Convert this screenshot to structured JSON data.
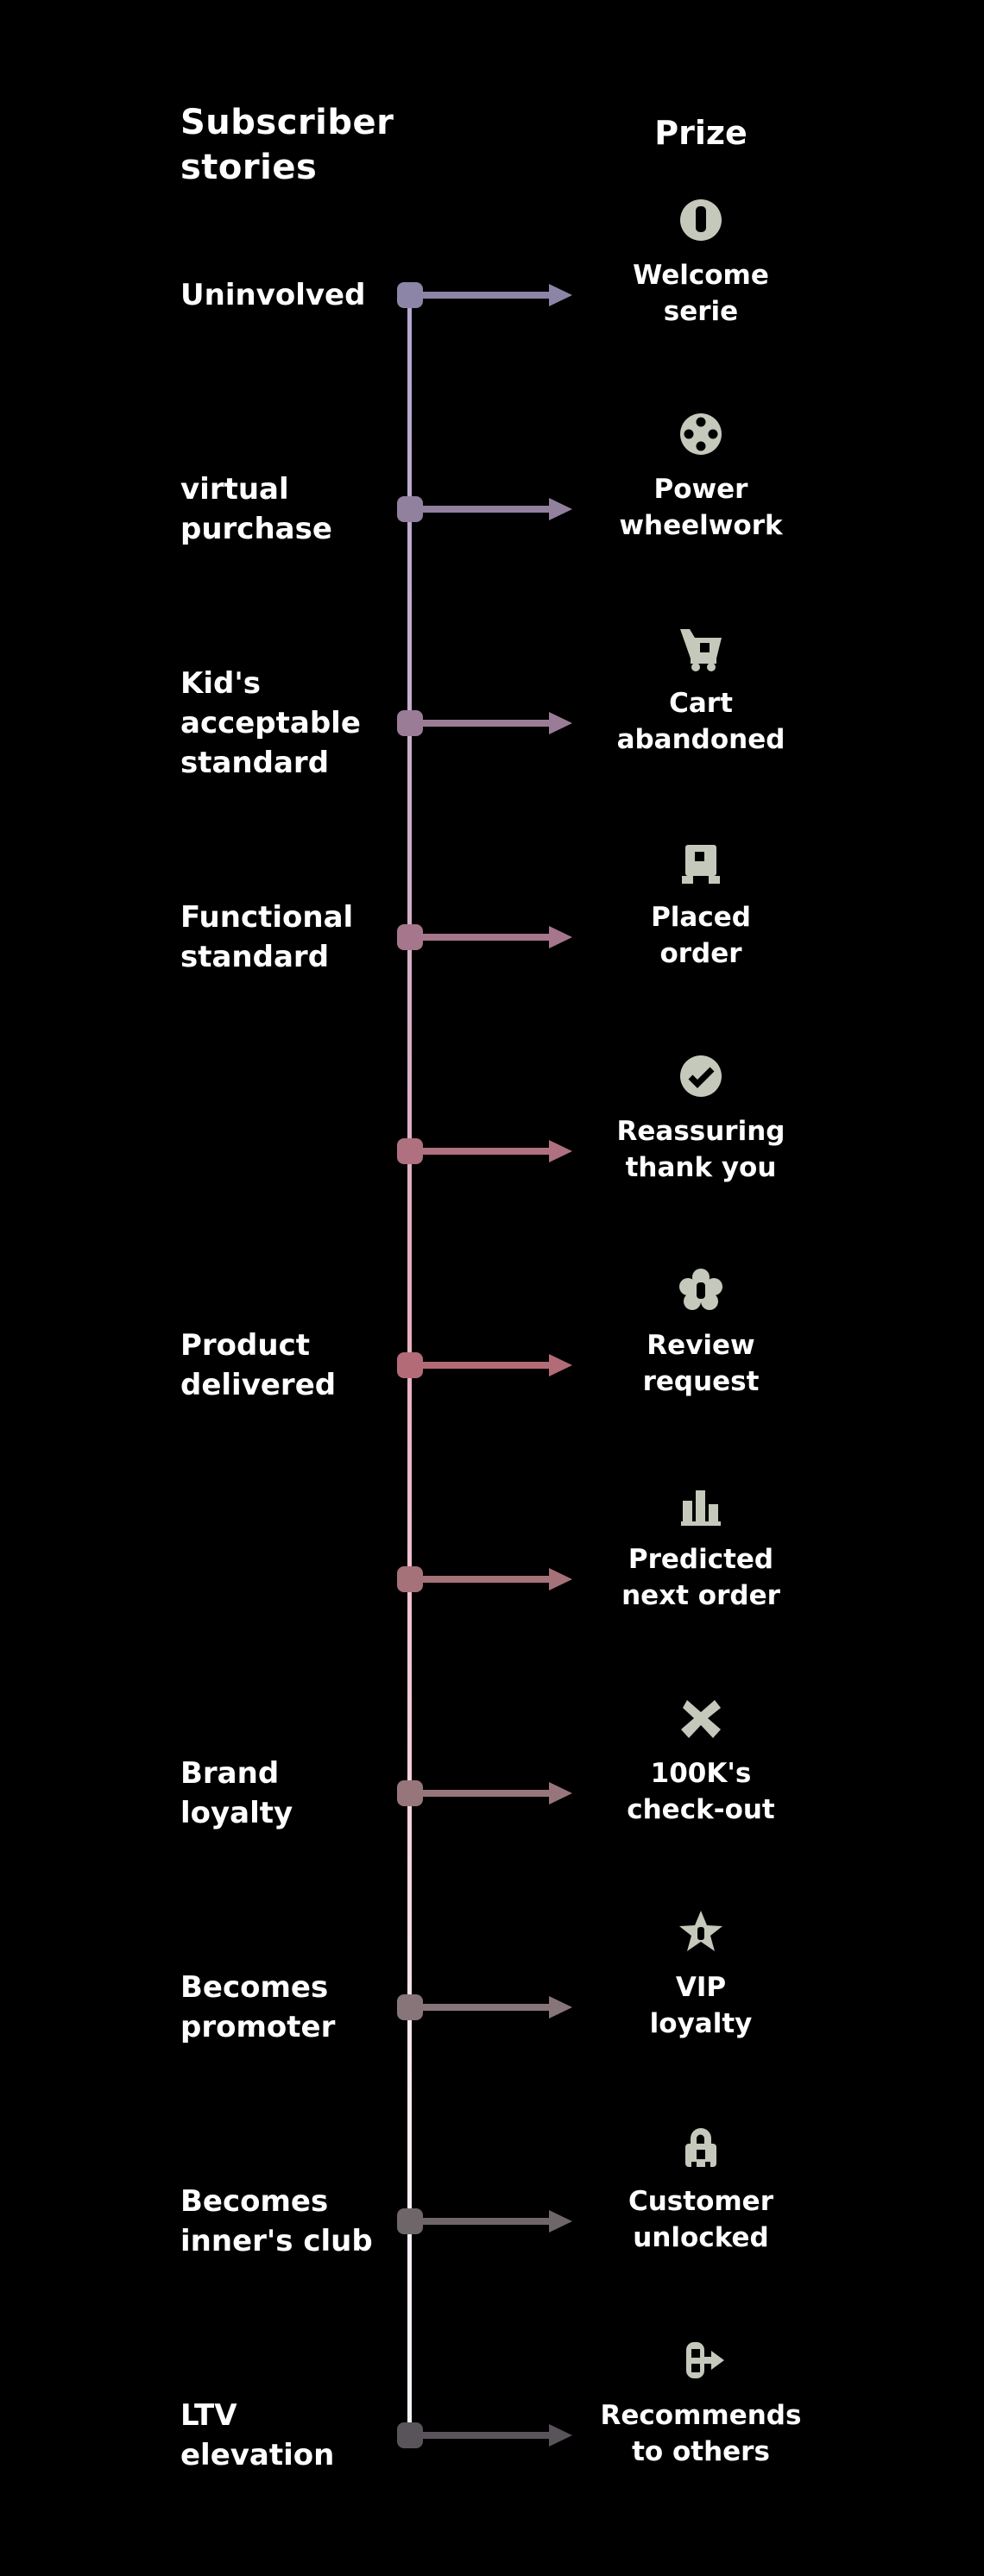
{
  "page": {
    "title_lines": [
      "Subscriber",
      "stories"
    ],
    "right_column_title": "Prize"
  },
  "colors": {
    "background": "#000000",
    "text": "#ffffff",
    "icon_fill": "#c5c9bb",
    "axis_gradient_top": "#b2a7d0",
    "axis_gradient_middle": "#e7aebd",
    "axis_gradient_bottom": "#f4f2f8"
  },
  "timeline": {
    "rows": [
      {
        "left_lines": [
          "Uninvolved"
        ],
        "right_lines": [
          "Welcome",
          "serie"
        ],
        "icon": "power-icon",
        "color": "#8d85a7"
      },
      {
        "left_lines": [
          "virtual",
          "purchase"
        ],
        "right_lines": [
          "Power",
          "wheelwork"
        ],
        "icon": "film-reel-icon",
        "color": "#92809f"
      },
      {
        "left_lines": [
          "Kid's",
          "acceptable",
          "standard"
        ],
        "right_lines": [
          "Cart",
          "abandoned"
        ],
        "icon": "cart-icon",
        "color": "#9b7c97"
      },
      {
        "left_lines": [
          "Functional",
          "standard"
        ],
        "right_lines": [
          "Placed",
          "order"
        ],
        "icon": "box-icon",
        "color": "#a5768c"
      },
      {
        "left_lines": [],
        "right_lines": [
          "Reassuring",
          "thank you"
        ],
        "icon": "check-circle-icon",
        "color": "#af7080"
      },
      {
        "left_lines": [
          "Product",
          "delivered"
        ],
        "right_lines": [
          "Review",
          "request"
        ],
        "icon": "flower-badge-icon",
        "color": "#b36b77"
      },
      {
        "left_lines": [],
        "right_lines": [
          "Predicted",
          "next order"
        ],
        "icon": "bar-chart-icon",
        "color": "#a5727a"
      },
      {
        "left_lines": [
          "Brand",
          "loyalty"
        ],
        "right_lines": [
          "100K's",
          "check-out"
        ],
        "icon": "burst-icon",
        "color": "#97767b"
      },
      {
        "left_lines": [
          "Becomes",
          "promoter"
        ],
        "right_lines": [
          "VIP",
          "loyalty"
        ],
        "icon": "star-icon",
        "color": "#87757a"
      },
      {
        "left_lines": [
          "Becomes",
          "inner's club"
        ],
        "right_lines": [
          "Customer",
          "unlocked"
        ],
        "icon": "lock-icon",
        "color": "#6f6669"
      },
      {
        "left_lines": [
          "LTV",
          "elevation"
        ],
        "right_lines": [
          "Recommends",
          "to others"
        ],
        "icon": "share-icon",
        "color": "#59545a"
      }
    ]
  }
}
